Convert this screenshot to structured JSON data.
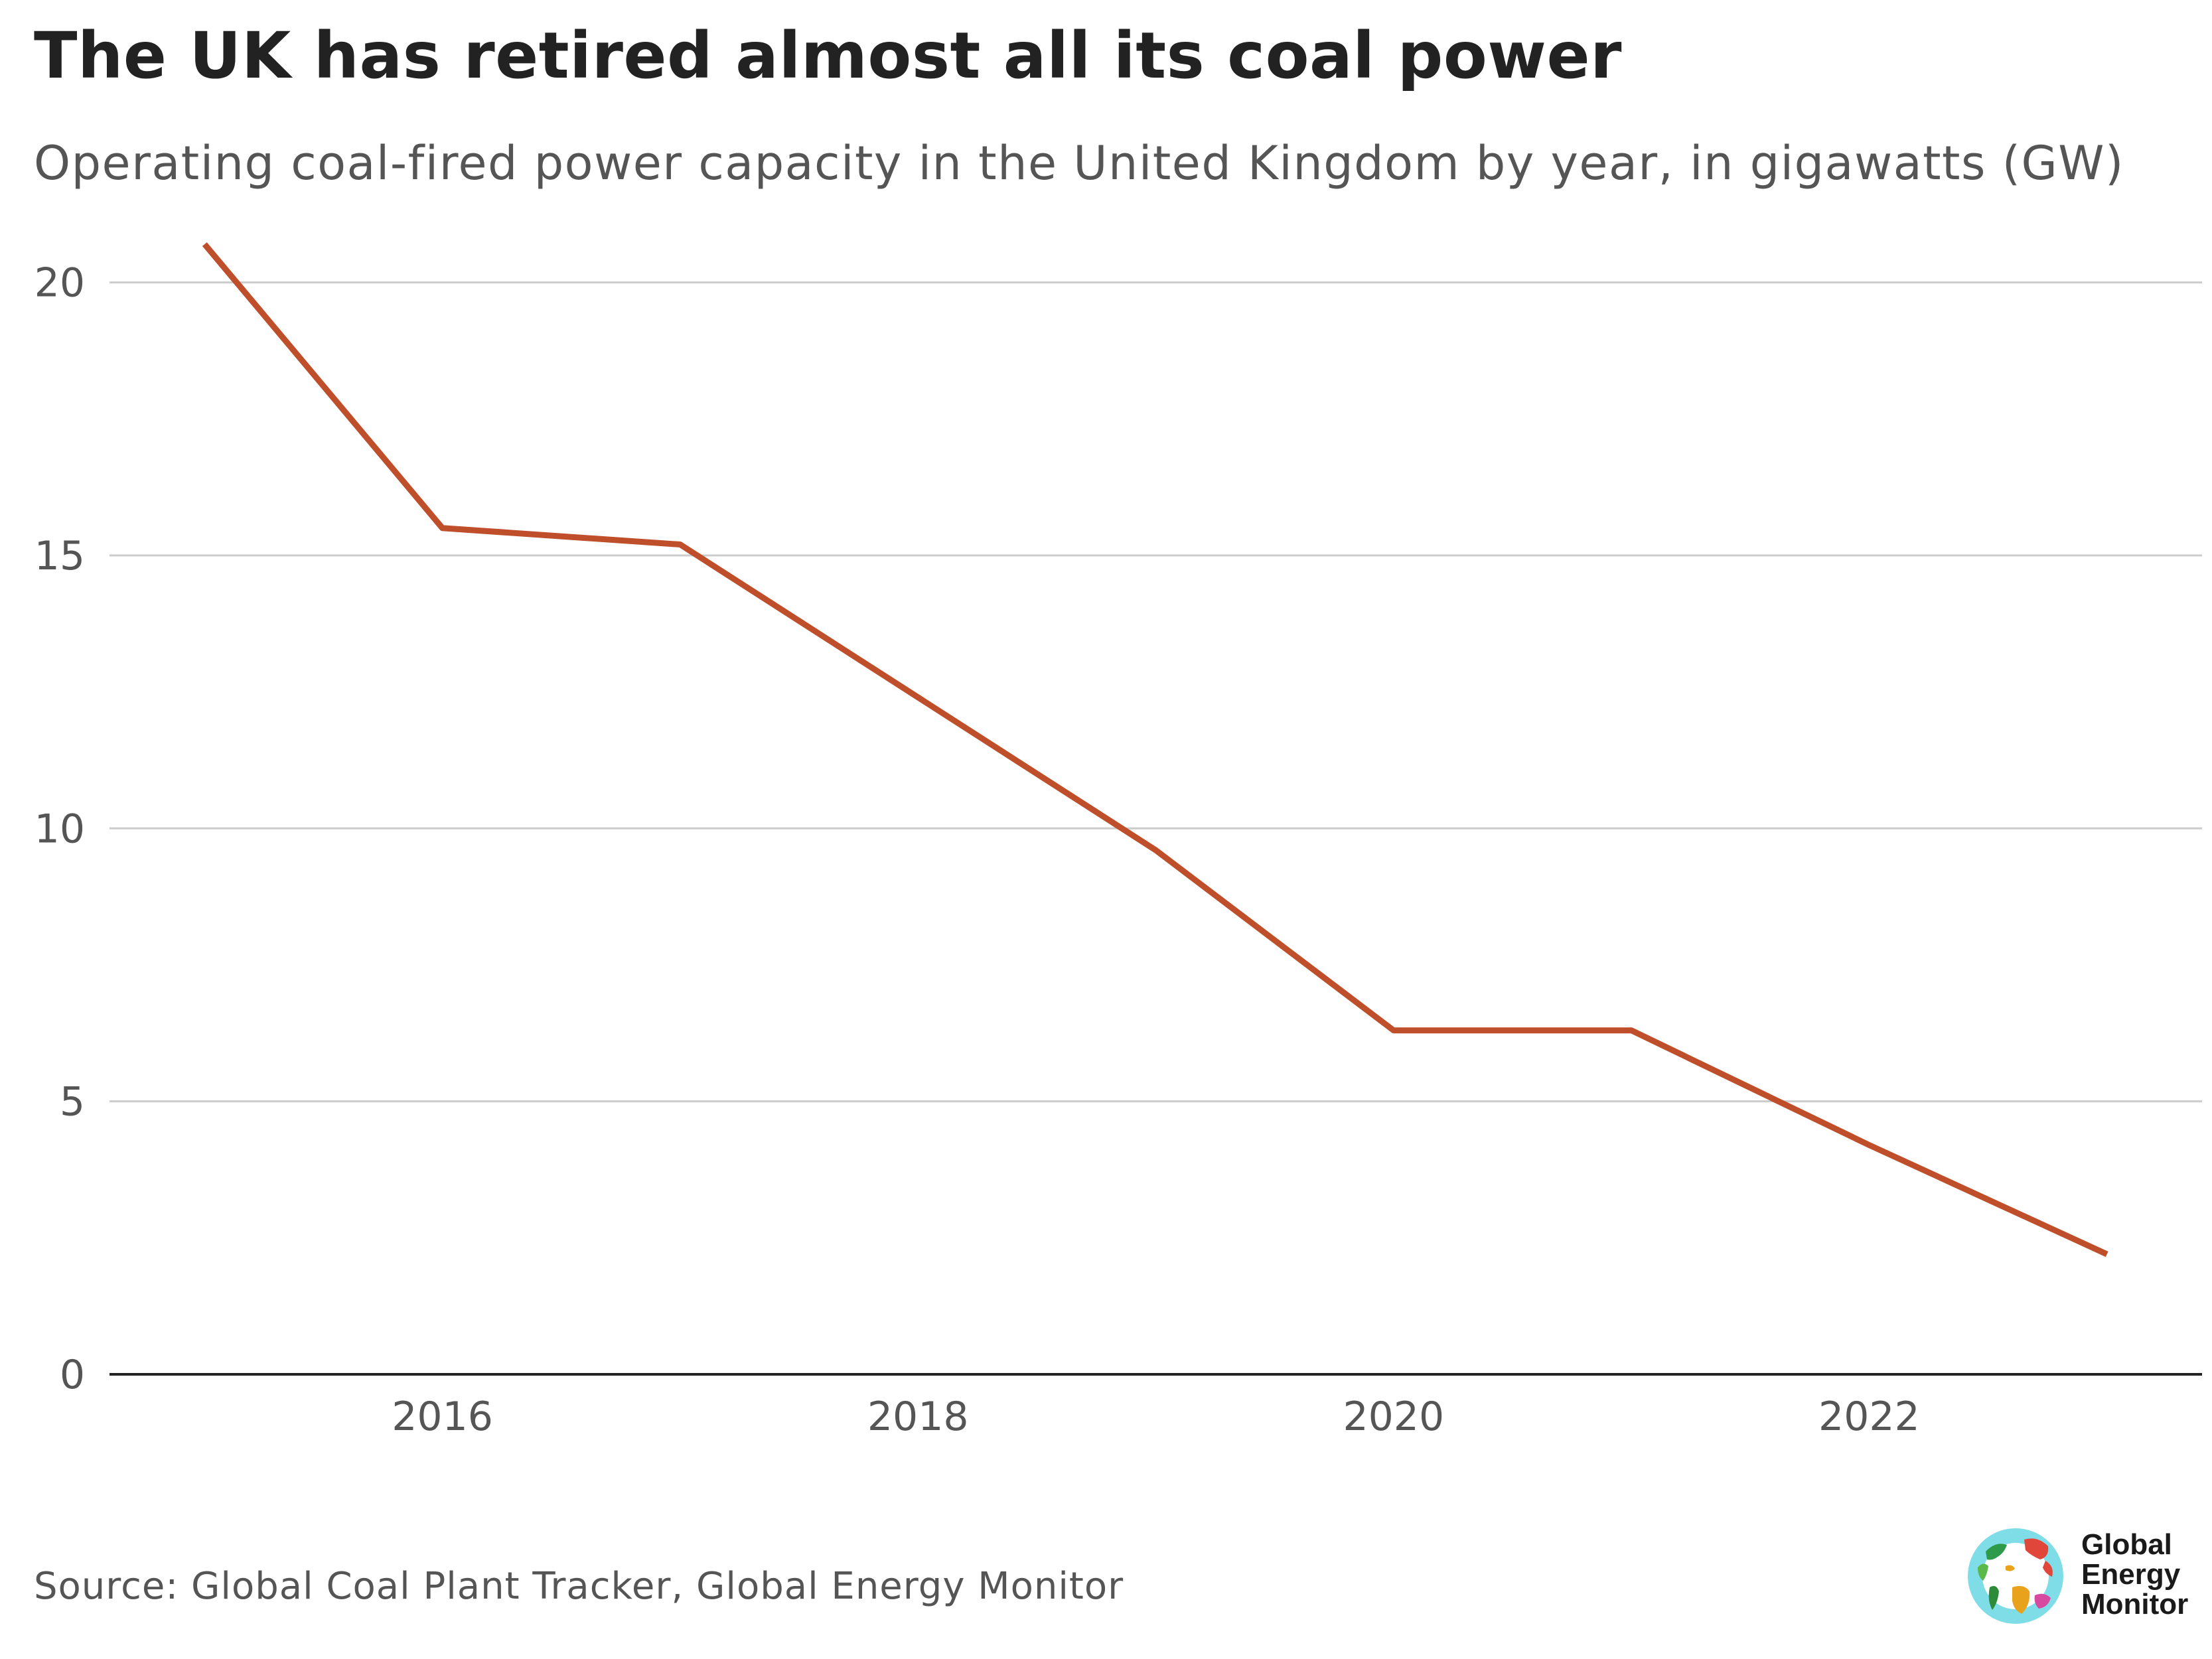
{
  "header": {
    "title": "The UK has retired almost all its coal power",
    "subtitle": "Operating coal-fired power capacity in the United Kingdom by year, in gigawatts (GW)"
  },
  "footer": {
    "source": "Source: Global Coal Plant Tracker, Global Energy Monitor"
  },
  "logo": {
    "line1": "Global",
    "line2": "Energy",
    "line3": "Monitor"
  },
  "colors": {
    "line": "#bf4e2a",
    "grid": "#cccccc",
    "axis": "#222222"
  },
  "chart_data": {
    "type": "line",
    "title": "The UK has retired almost all its coal power",
    "subtitle": "Operating coal-fired power capacity in the United Kingdom by year, in gigawatts (GW)",
    "xlabel": "",
    "ylabel": "",
    "x": [
      2015,
      2016,
      2017,
      2018,
      2019,
      2020,
      2021,
      2022,
      2023
    ],
    "series": [
      {
        "values": [
          20.7,
          15.5,
          15.2,
          12.4,
          9.6,
          6.3,
          6.3,
          4.2,
          2.2
        ]
      }
    ],
    "x_ticks": [
      "2016",
      "2018",
      "2020",
      "2022"
    ],
    "y_ticks": [
      "0",
      "5",
      "10",
      "15",
      "20"
    ],
    "xlim": [
      2014.6,
      2023.4
    ],
    "ylim": [
      0,
      20.7
    ],
    "grid": "horizontal"
  }
}
